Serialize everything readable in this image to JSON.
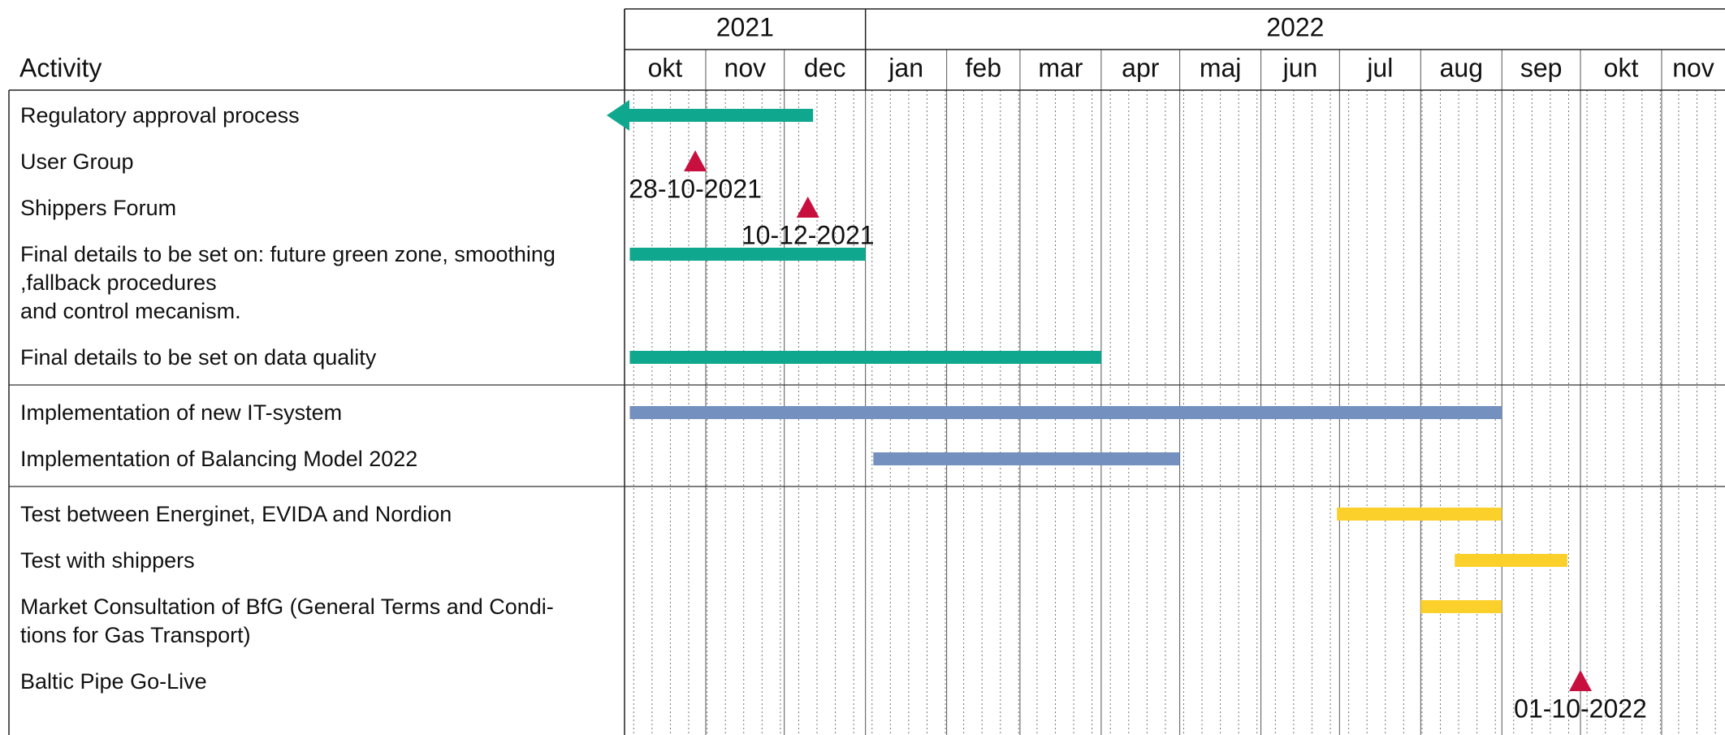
{
  "chart_data": {
    "type": "gantt",
    "activity_header": "Activity",
    "xlim": [
      "2021-10-01",
      "2022-12-01"
    ],
    "week_grid": true,
    "years": [
      {
        "label": "2021",
        "start": "2021-10-01",
        "end": "2022-01-01"
      },
      {
        "label": "2022",
        "start": "2022-01-01",
        "end": "2022-12-01"
      }
    ],
    "months": [
      {
        "label": "okt",
        "start": "2021-10-01"
      },
      {
        "label": "nov",
        "start": "2021-11-01"
      },
      {
        "label": "dec",
        "start": "2021-12-01"
      },
      {
        "label": "jan",
        "start": "2022-01-01"
      },
      {
        "label": "feb",
        "start": "2022-02-01"
      },
      {
        "label": "mar",
        "start": "2022-03-01"
      },
      {
        "label": "apr",
        "start": "2022-04-01"
      },
      {
        "label": "maj",
        "start": "2022-05-01"
      },
      {
        "label": "jun",
        "start": "2022-06-01"
      },
      {
        "label": "jul",
        "start": "2022-07-01"
      },
      {
        "label": "aug",
        "start": "2022-08-01"
      },
      {
        "label": "sep",
        "start": "2022-09-01"
      },
      {
        "label": "okt",
        "start": "2022-10-01"
      },
      {
        "label": "nov",
        "start": "2022-11-01"
      }
    ],
    "groups": [
      {
        "tasks": [
          {
            "lines": [
              "Regulatory approval process"
            ],
            "kind": "bar",
            "start": "2021-10-01",
            "end": "2021-12-12",
            "continues_before": true,
            "color": "#0fa88e"
          },
          {
            "lines": [
              "User Group"
            ],
            "kind": "milestone",
            "date": "2021-10-28",
            "date_label": "28-10-2021",
            "color": "#c8103f"
          },
          {
            "lines": [
              "Shippers Forum"
            ],
            "kind": "milestone",
            "date": "2021-12-10",
            "date_label": "10-12-2021",
            "color": "#c8103f"
          },
          {
            "lines": [
              "Final details to be set on: future green zone, smoothing",
              ",fallback procedures",
              "and control mecanism."
            ],
            "kind": "bar",
            "start": "2021-10-03",
            "end": "2022-01-01",
            "color": "#0fa88e"
          },
          {
            "lines": [
              "Final details to be set on data quality"
            ],
            "kind": "bar",
            "start": "2021-10-03",
            "end": "2022-04-01",
            "color": "#0fa88e"
          }
        ]
      },
      {
        "tasks": [
          {
            "lines": [
              "Implementation of new IT-system"
            ],
            "kind": "bar",
            "start": "2021-10-03",
            "end": "2022-09-01",
            "color": "#7490bf"
          },
          {
            "lines": [
              "Implementation of Balancing Model 2022"
            ],
            "kind": "bar",
            "start": "2022-01-04",
            "end": "2022-05-01",
            "color": "#7490bf"
          }
        ]
      },
      {
        "tasks": [
          {
            "lines": [
              "Test between Energinet, EVIDA and Nordion"
            ],
            "kind": "bar",
            "start": "2022-06-30",
            "end": "2022-09-01",
            "color": "#fbd02a"
          },
          {
            "lines": [
              "Test with shippers"
            ],
            "kind": "bar",
            "start": "2022-08-14",
            "end": "2022-09-26",
            "color": "#fbd02a"
          },
          {
            "lines": [
              "Market Consultation of BfG (General Terms and Condi-",
              "tions for Gas Transport)"
            ],
            "kind": "bar",
            "start": "2022-08-01",
            "end": "2022-09-01",
            "color": "#fbd02a"
          },
          {
            "lines": [
              "Baltic Pipe Go-Live"
            ],
            "kind": "milestone",
            "date": "2022-10-01",
            "date_label": "01-10-2022",
            "color": "#c8103f"
          }
        ]
      }
    ]
  }
}
